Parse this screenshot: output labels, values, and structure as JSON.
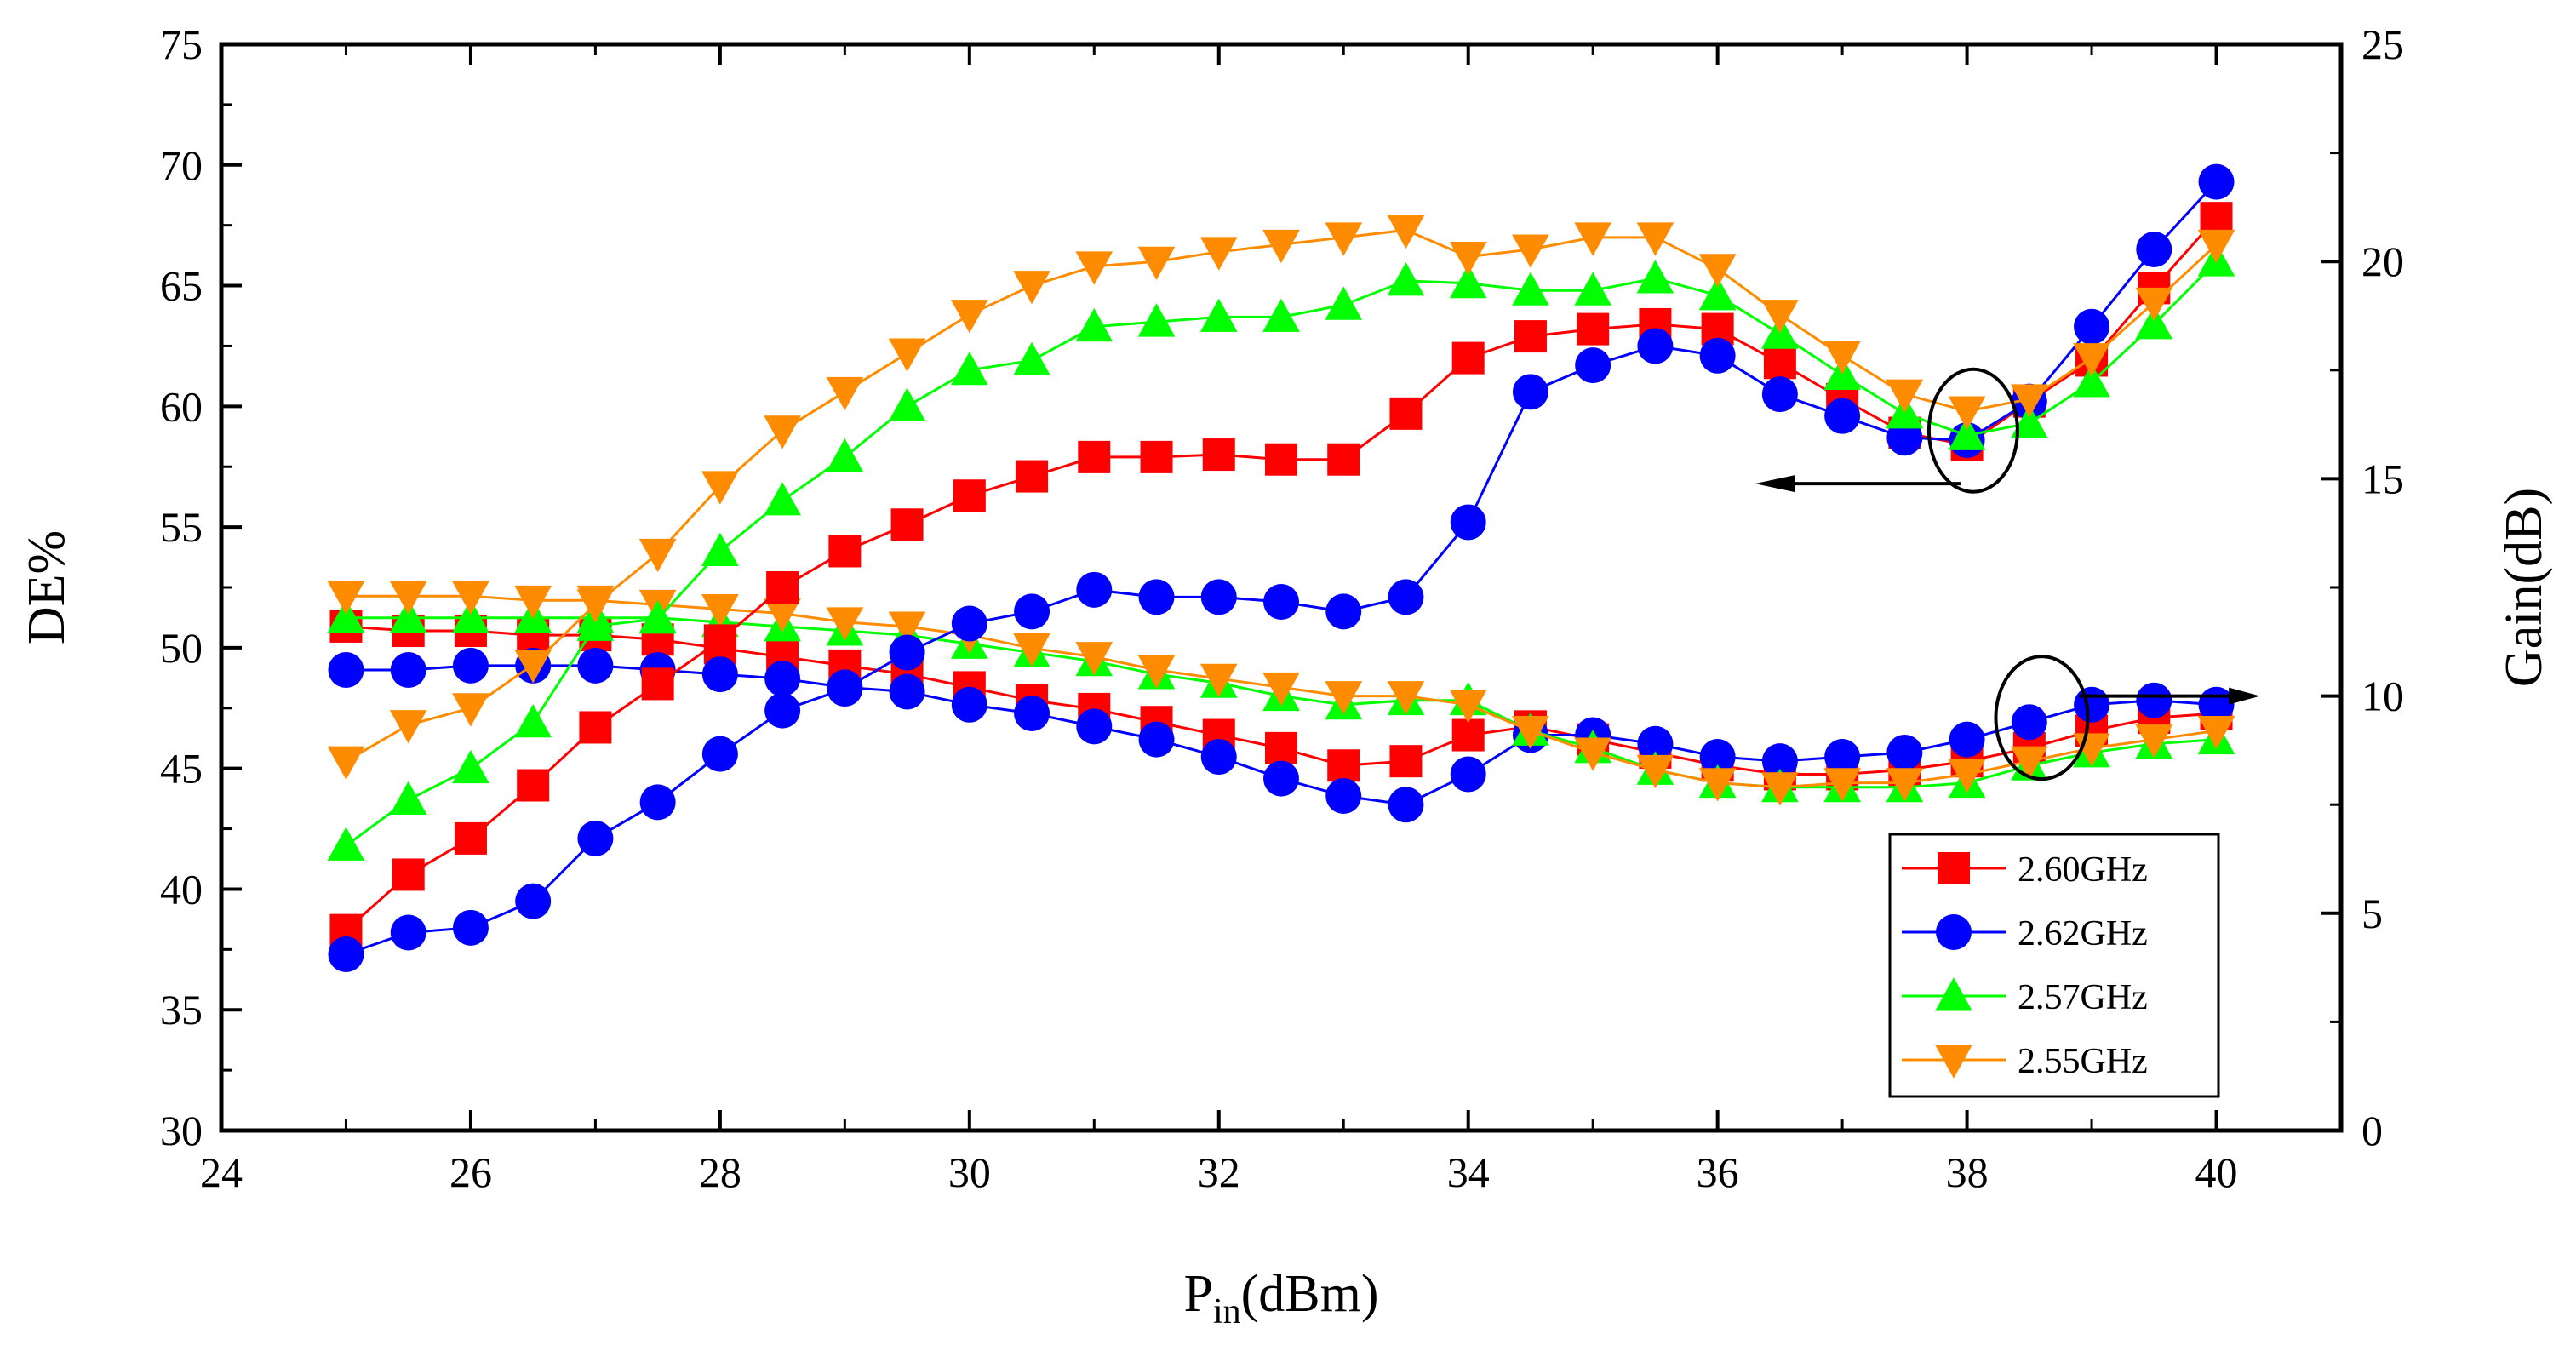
{
  "chart_data": {
    "type": "line",
    "xlabel_main": "P",
    "xlabel_sub": "in",
    "xlabel_unit": "(dBm)",
    "ylabel_left": "DE%",
    "ylabel_right": "Gain(dB)",
    "xlim": [
      24,
      41
    ],
    "ylim_left": [
      30,
      75
    ],
    "ylim_right": [
      0,
      25
    ],
    "xticks": [
      24,
      26,
      28,
      30,
      32,
      34,
      36,
      38,
      40
    ],
    "yticks_left": [
      30,
      35,
      40,
      45,
      50,
      55,
      60,
      65,
      70,
      75
    ],
    "yticks_right": [
      0,
      5,
      10,
      15,
      20,
      25
    ],
    "legend_position": "bottom-right",
    "x": [
      25,
      25.5,
      26,
      26.5,
      27,
      27.5,
      28,
      28.5,
      29,
      29.5,
      30,
      30.5,
      31,
      31.5,
      32,
      32.5,
      33,
      33.5,
      34,
      34.5,
      35,
      35.5,
      36,
      36.5,
      37,
      37.5,
      38,
      38.5,
      39,
      39.5,
      40
    ],
    "series": [
      {
        "name": "2.60GHz",
        "color": "#ff0000",
        "marker": "square",
        "de": [
          38.3,
          40.6,
          42.1,
          44.3,
          46.7,
          48.5,
          50.3,
          52.5,
          54.0,
          55.1,
          56.3,
          57.1,
          57.9,
          57.9,
          58.0,
          57.8,
          57.8,
          59.7,
          62.0,
          62.9,
          63.2,
          63.4,
          63.2,
          61.8,
          60.3,
          58.9,
          58.4,
          60.2,
          61.9,
          64.9,
          67.8
        ],
        "gain": [
          11.6,
          11.5,
          11.5,
          11.4,
          11.4,
          11.3,
          11.1,
          10.9,
          10.7,
          10.5,
          10.2,
          9.9,
          9.7,
          9.4,
          9.1,
          8.8,
          8.4,
          8.5,
          9.1,
          9.3,
          9.0,
          8.7,
          8.4,
          8.2,
          8.2,
          8.3,
          8.5,
          8.8,
          9.2,
          9.5,
          9.6
        ]
      },
      {
        "name": "2.62GHz",
        "color": "#0000ff",
        "marker": "circle",
        "de": [
          37.3,
          38.2,
          38.4,
          39.5,
          42.1,
          43.6,
          45.6,
          47.4,
          48.3,
          49.8,
          51.0,
          51.5,
          52.4,
          52.1,
          52.1,
          51.9,
          51.5,
          52.1,
          55.2,
          60.6,
          61.7,
          62.5,
          62.1,
          60.5,
          59.6,
          58.7,
          58.6,
          60.2,
          63.3,
          66.5,
          69.3
        ],
        "gain": [
          10.6,
          10.6,
          10.7,
          10.7,
          10.7,
          10.6,
          10.5,
          10.4,
          10.2,
          10.1,
          9.8,
          9.6,
          9.3,
          9.0,
          8.6,
          8.1,
          7.7,
          7.5,
          8.2,
          9.1,
          9.1,
          8.9,
          8.6,
          8.5,
          8.6,
          8.7,
          9.0,
          9.4,
          9.8,
          9.9,
          9.8
        ]
      },
      {
        "name": "2.57GHz",
        "color": "#00ff00",
        "marker": "triangle-up",
        "de": [
          41.8,
          43.7,
          45.0,
          46.9,
          50.9,
          51.2,
          54.0,
          56.1,
          57.9,
          60.0,
          61.5,
          61.9,
          63.3,
          63.5,
          63.7,
          63.7,
          64.2,
          65.2,
          65.1,
          64.8,
          64.8,
          65.3,
          64.6,
          63.0,
          61.3,
          59.7,
          58.8,
          59.3,
          61.0,
          63.4,
          66.0
        ],
        "gain": [
          11.8,
          11.8,
          11.8,
          11.8,
          11.8,
          11.8,
          11.7,
          11.6,
          11.5,
          11.4,
          11.2,
          11.0,
          10.8,
          10.5,
          10.3,
          10.0,
          9.8,
          9.9,
          9.9,
          9.2,
          8.8,
          8.3,
          8.0,
          7.9,
          7.9,
          7.9,
          8.0,
          8.4,
          8.7,
          8.9,
          9.0
        ]
      },
      {
        "name": "2.55GHz",
        "color": "#ff8c00",
        "marker": "triangle-down",
        "de": [
          45.3,
          46.8,
          47.5,
          49.3,
          51.8,
          53.9,
          56.7,
          59.0,
          60.6,
          62.2,
          63.8,
          65.0,
          65.8,
          66.0,
          66.4,
          66.7,
          67.0,
          67.3,
          66.2,
          66.5,
          67.0,
          67.0,
          65.7,
          63.8,
          62.1,
          60.5,
          59.8,
          60.3,
          62.0,
          64.3,
          66.7
        ],
        "gain": [
          12.3,
          12.3,
          12.3,
          12.2,
          12.2,
          12.1,
          12.0,
          11.9,
          11.7,
          11.6,
          11.4,
          11.1,
          10.9,
          10.6,
          10.4,
          10.2,
          10.0,
          10.0,
          9.8,
          9.2,
          8.7,
          8.3,
          8.0,
          7.9,
          8.0,
          8.0,
          8.2,
          8.5,
          8.8,
          9.0,
          9.2
        ]
      }
    ]
  }
}
